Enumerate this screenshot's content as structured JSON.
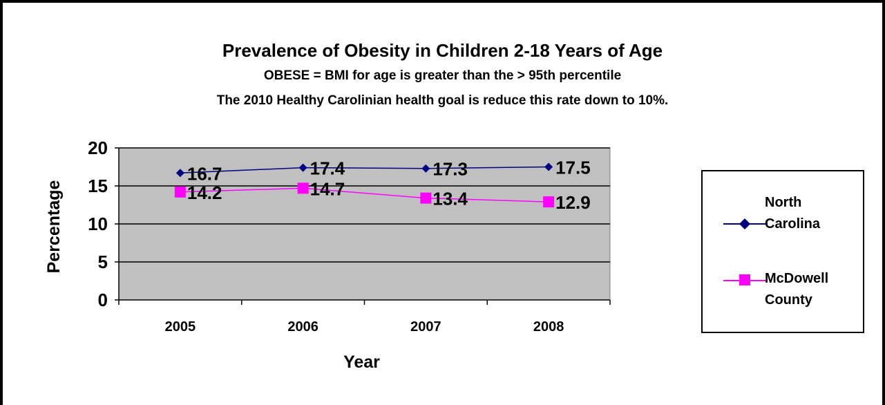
{
  "chart_data": {
    "type": "line",
    "title": "Prevalence of Obesity in Children 2-18 Years of Age",
    "subtitle": [
      "OBESE = BMI for age is greater than the > 95th percentile",
      "The 2010 Healthy Carolinian health goal is reduce this rate down to 10%."
    ],
    "xlabel": "Year",
    "ylabel": "Percentage",
    "categories": [
      "2005",
      "2006",
      "2007",
      "2008"
    ],
    "ylim": [
      0,
      20
    ],
    "yticks": [
      "0",
      "5",
      "10",
      "15",
      "20"
    ],
    "grid": true,
    "legend_position": "right",
    "series": [
      {
        "name": "North Carolina",
        "color": "#000080",
        "marker": "diamond",
        "values": [
          16.7,
          17.4,
          17.3,
          17.5
        ],
        "labels": [
          "16.7",
          "17.4",
          "17.3",
          "17.5"
        ]
      },
      {
        "name": "McDowell County",
        "color": "#ff00ff",
        "marker": "square",
        "values": [
          14.2,
          14.7,
          13.4,
          12.9
        ],
        "labels": [
          "14.2",
          "14.7",
          "13.4",
          "12.9"
        ]
      }
    ],
    "plot_background": "#c0c0c0"
  },
  "legend": {
    "nc_label_1": "North",
    "nc_label_2": "Carolina",
    "mc_label_1": "McDowell",
    "mc_label_2": "County"
  }
}
